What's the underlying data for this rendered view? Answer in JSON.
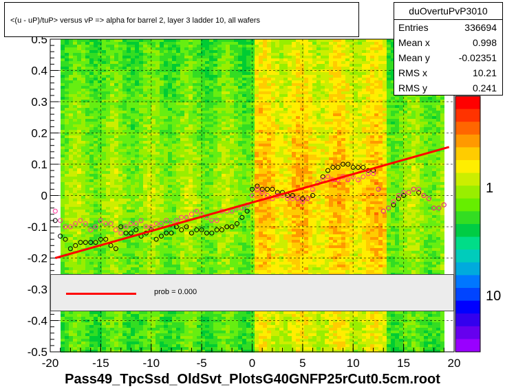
{
  "title": "<(u - uP)/tuP> versus   vP => alpha for barrel 2, layer 3 ladder 10, all wafers",
  "stats": {
    "name": "duOvertuPvP3010",
    "rows": [
      {
        "label": "Entries",
        "value": "336694"
      },
      {
        "label": "Mean x",
        "value": "0.998"
      },
      {
        "label": "Mean y",
        "value": "-0.02351"
      },
      {
        "label": "RMS x",
        "value": "10.21"
      },
      {
        "label": "RMS y",
        "value": "0.241"
      }
    ]
  },
  "fit_legend": {
    "text": "prob = 0.000",
    "color": "#ff0000"
  },
  "x_title": "Pass49_TpcSsd_OldSvt_PlotsG40GNFP25rCut0.5cm.root",
  "chart_data": {
    "type": "heatmap",
    "xlim": [
      -20,
      20
    ],
    "ylim": [
      -0.5,
      0.5
    ],
    "x_ticks": [
      "-20",
      "-15",
      "-10",
      "-5",
      "0",
      "5",
      "10",
      "15",
      "20"
    ],
    "y_ticks": [
      "-0.5",
      "-0.4",
      "-0.3",
      "-0.2",
      "-0.1",
      "0",
      "0.1",
      "0.2",
      "0.3",
      "0.4",
      "0.5"
    ],
    "colorbar_labels": [
      "1",
      "10"
    ],
    "grid": true,
    "fit_line": {
      "x": [
        -19.5,
        19.5
      ],
      "y": [
        -0.2,
        0.155
      ],
      "color": "#ff0000"
    },
    "series": [
      {
        "marker": "open-circle",
        "color": "#000000",
        "x": [
          -19.5,
          -19,
          -18.5,
          -18,
          -17.5,
          -17,
          -16.5,
          -16,
          -15.5,
          -15,
          -14.5,
          -14,
          -13.5,
          -13,
          -12.5,
          -12,
          -11.5,
          -11,
          -10.5,
          -10,
          -9.5,
          -9,
          -8.5,
          -8,
          -7.5,
          -7,
          -6.5,
          -6,
          -5.5,
          -5,
          -4.5,
          -4,
          -3.5,
          -3,
          -2.5,
          -2,
          -1.5,
          -1,
          -0.5,
          0,
          0.5,
          1,
          1.5,
          2,
          2.5,
          3,
          3.5,
          4,
          4.5,
          5,
          5.5,
          6,
          6.5,
          7,
          7.5,
          8,
          8.5,
          9,
          9.5,
          10,
          10.5,
          11,
          11.5,
          12,
          12.5,
          13,
          13.5,
          14,
          14.5,
          15,
          15.5,
          16,
          16.5,
          17,
          17.5,
          18,
          18.5,
          19
        ],
        "y": [
          -0.08,
          -0.13,
          -0.14,
          -0.17,
          -0.16,
          -0.15,
          -0.15,
          -0.15,
          -0.15,
          -0.14,
          -0.14,
          -0.16,
          -0.17,
          -0.1,
          -0.12,
          -0.12,
          -0.11,
          -0.13,
          -0.12,
          -0.11,
          -0.14,
          -0.13,
          -0.12,
          -0.12,
          -0.1,
          -0.11,
          -0.1,
          -0.12,
          -0.11,
          -0.11,
          -0.12,
          -0.12,
          -0.11,
          -0.11,
          -0.1,
          -0.1,
          -0.09,
          -0.07,
          -0.05,
          0.02,
          0.03,
          0.02,
          0.02,
          0.02,
          0.01,
          0.01,
          0,
          0,
          -0.01,
          -0.01,
          -0.01,
          0,
          0.04,
          0.06,
          0.08,
          0.09,
          0.09,
          0.1,
          0.1,
          0.09,
          0.09,
          0.09,
          0.08,
          0.08,
          0.02,
          -0.05,
          -0.04,
          -0.03,
          -0.01,
          0,
          0.01,
          0.02,
          0.01,
          0,
          -0.01,
          -0.04,
          -0.04,
          -0.03
        ]
      },
      {
        "marker": "open-circle",
        "color": "#ff3399",
        "x": [
          -19.5,
          -19,
          -18.5,
          -18,
          -17.5,
          -17,
          -16.5,
          -16,
          -15.5,
          -15,
          -14.5,
          -14,
          -13.5,
          -13,
          -12.5,
          -12,
          -11.5,
          -11,
          -10.5,
          -10,
          -9.5,
          -9,
          -8.5,
          -8,
          -7.5,
          -7,
          -6.5,
          -6,
          -5.5,
          -5,
          -4.5,
          -4,
          -3.5,
          -3,
          -2.5,
          -2,
          -1.5,
          -1,
          -0.5,
          0,
          0.5,
          1,
          1.5,
          2,
          2.5,
          3,
          3.5,
          4,
          4.5,
          5,
          5.5,
          6,
          6.5,
          7,
          7.5,
          8,
          8.5,
          9,
          9.5,
          10,
          10.5,
          11,
          11.5,
          12,
          12.5,
          13,
          13.5,
          14,
          14.5,
          15,
          15.5,
          16,
          16.5,
          17,
          17.5,
          18,
          18.5,
          19
        ],
        "y": [
          -0.05,
          -0.08,
          -0.1,
          -0.1,
          -0.09,
          -0.08,
          -0.09,
          -0.11,
          -0.1,
          -0.08,
          -0.09,
          -0.09,
          -0.11,
          -0.12,
          -0.1,
          -0.09,
          -0.09,
          -0.08,
          -0.1,
          -0.1,
          -0.09,
          -0.09,
          -0.08,
          -0.09,
          -0.08,
          -0.07,
          -0.07,
          -0.06,
          -0.05,
          -0.06,
          -0.07,
          -0.08,
          -0.08,
          -0.05,
          -0.05,
          -0.05,
          -0.04,
          -0.04,
          -0.03,
          0,
          0.02,
          0.01,
          0,
          -0.01,
          0,
          0,
          -0.01,
          -0.01,
          -0.01,
          -0.02,
          -0.01,
          0.02,
          0.04,
          0.05,
          0.06,
          0.05,
          0.05,
          0.06,
          0.05,
          0.06,
          0.05,
          0.06,
          0.07,
          0.07,
          0.02,
          -0.05,
          -0.04,
          -0.02,
          0,
          0.01,
          0.01,
          0.02,
          0.02,
          0,
          -0.01,
          -0.04,
          -0.04,
          -0.03
        ]
      }
    ]
  }
}
